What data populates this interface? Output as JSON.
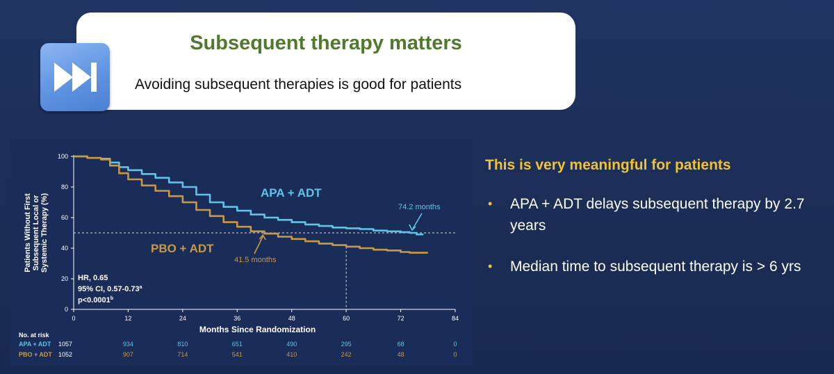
{
  "header": {
    "title": "Subsequent therapy matters",
    "subtitle": "Avoiding subsequent therapies is good for patients",
    "icon": "fast-forward-icon"
  },
  "right_panel": {
    "heading": "This is very meaningful for patients",
    "bullets": [
      "APA + ADT delays subsequent therapy by 2.7 years",
      "Median time to subsequent therapy is > 6 yrs"
    ]
  },
  "colors": {
    "background": "#1c2f58",
    "heading_green": "#4f7a2d",
    "accent_yellow": "#f2c230",
    "apa_series": "#62c3e8",
    "pbo_series": "#c99a43"
  },
  "chart_data": {
    "type": "line",
    "ylabel": "Patients Without First Subsequent Local or Systemic Therapy (%)",
    "xlabel": "Months Since Randomization",
    "xlim": [
      0,
      84
    ],
    "ylim": [
      0,
      100
    ],
    "xticks": [
      "0",
      "12",
      "24",
      "36",
      "48",
      "60",
      "72",
      "84"
    ],
    "yticks": [
      "0",
      "20",
      "40",
      "60",
      "80",
      "100"
    ],
    "series": [
      {
        "name": "APA + ADT",
        "color": "#62c3e8",
        "x": [
          0,
          3,
          6,
          8,
          10,
          12,
          15,
          18,
          21,
          24,
          27,
          30,
          33,
          36,
          39,
          42,
          45,
          48,
          51,
          54,
          57,
          60,
          63,
          66,
          69,
          72,
          74,
          75.5,
          77
        ],
        "y": [
          100,
          99,
          98.5,
          96,
          93,
          91,
          88.5,
          86,
          83,
          80,
          75,
          70,
          67,
          64.5,
          62,
          60,
          58.5,
          57,
          55.5,
          54.5,
          53.5,
          53,
          52.5,
          51.5,
          51,
          50.5,
          50,
          49,
          49
        ]
      },
      {
        "name": "PBO + ADT",
        "color": "#c99a43",
        "x": [
          0,
          3,
          6,
          8,
          10,
          12,
          15,
          18,
          21,
          24,
          27,
          30,
          33,
          36,
          39,
          42,
          45,
          48,
          51,
          54,
          57,
          60,
          63,
          66,
          69,
          72,
          74,
          76,
          78
        ],
        "y": [
          100,
          99,
          98,
          94,
          89,
          85,
          81,
          77.5,
          74,
          70,
          65,
          61,
          57,
          54,
          51,
          49.5,
          47.5,
          46,
          44.5,
          43,
          42,
          41,
          40,
          39,
          38.5,
          37.5,
          37,
          37,
          37
        ]
      }
    ],
    "stats": [
      "HR, 0.65",
      "95% CI, 0.57-0.73",
      "p<0.0001"
    ],
    "stats_superscripts": [
      "a",
      "b"
    ],
    "annotations": [
      {
        "text": "74.2 months",
        "series": "APA + ADT",
        "x": 74.2,
        "y": 50
      },
      {
        "text": "41.5 months",
        "series": "PBO + ADT",
        "x": 41.5,
        "y": 50
      }
    ],
    "reference_lines": {
      "y": 50,
      "x": 60
    },
    "risk_table": {
      "title": "No. at risk",
      "months": [
        0,
        12,
        24,
        36,
        48,
        60,
        72,
        84
      ],
      "rows": [
        {
          "label": "APA + ADT",
          "values": [
            "1057",
            "934",
            "810",
            "651",
            "490",
            "295",
            "68",
            "0"
          ]
        },
        {
          "label": "PBO + ADT",
          "values": [
            "1052",
            "907",
            "714",
            "541",
            "410",
            "242",
            "48",
            "0"
          ]
        }
      ]
    }
  }
}
